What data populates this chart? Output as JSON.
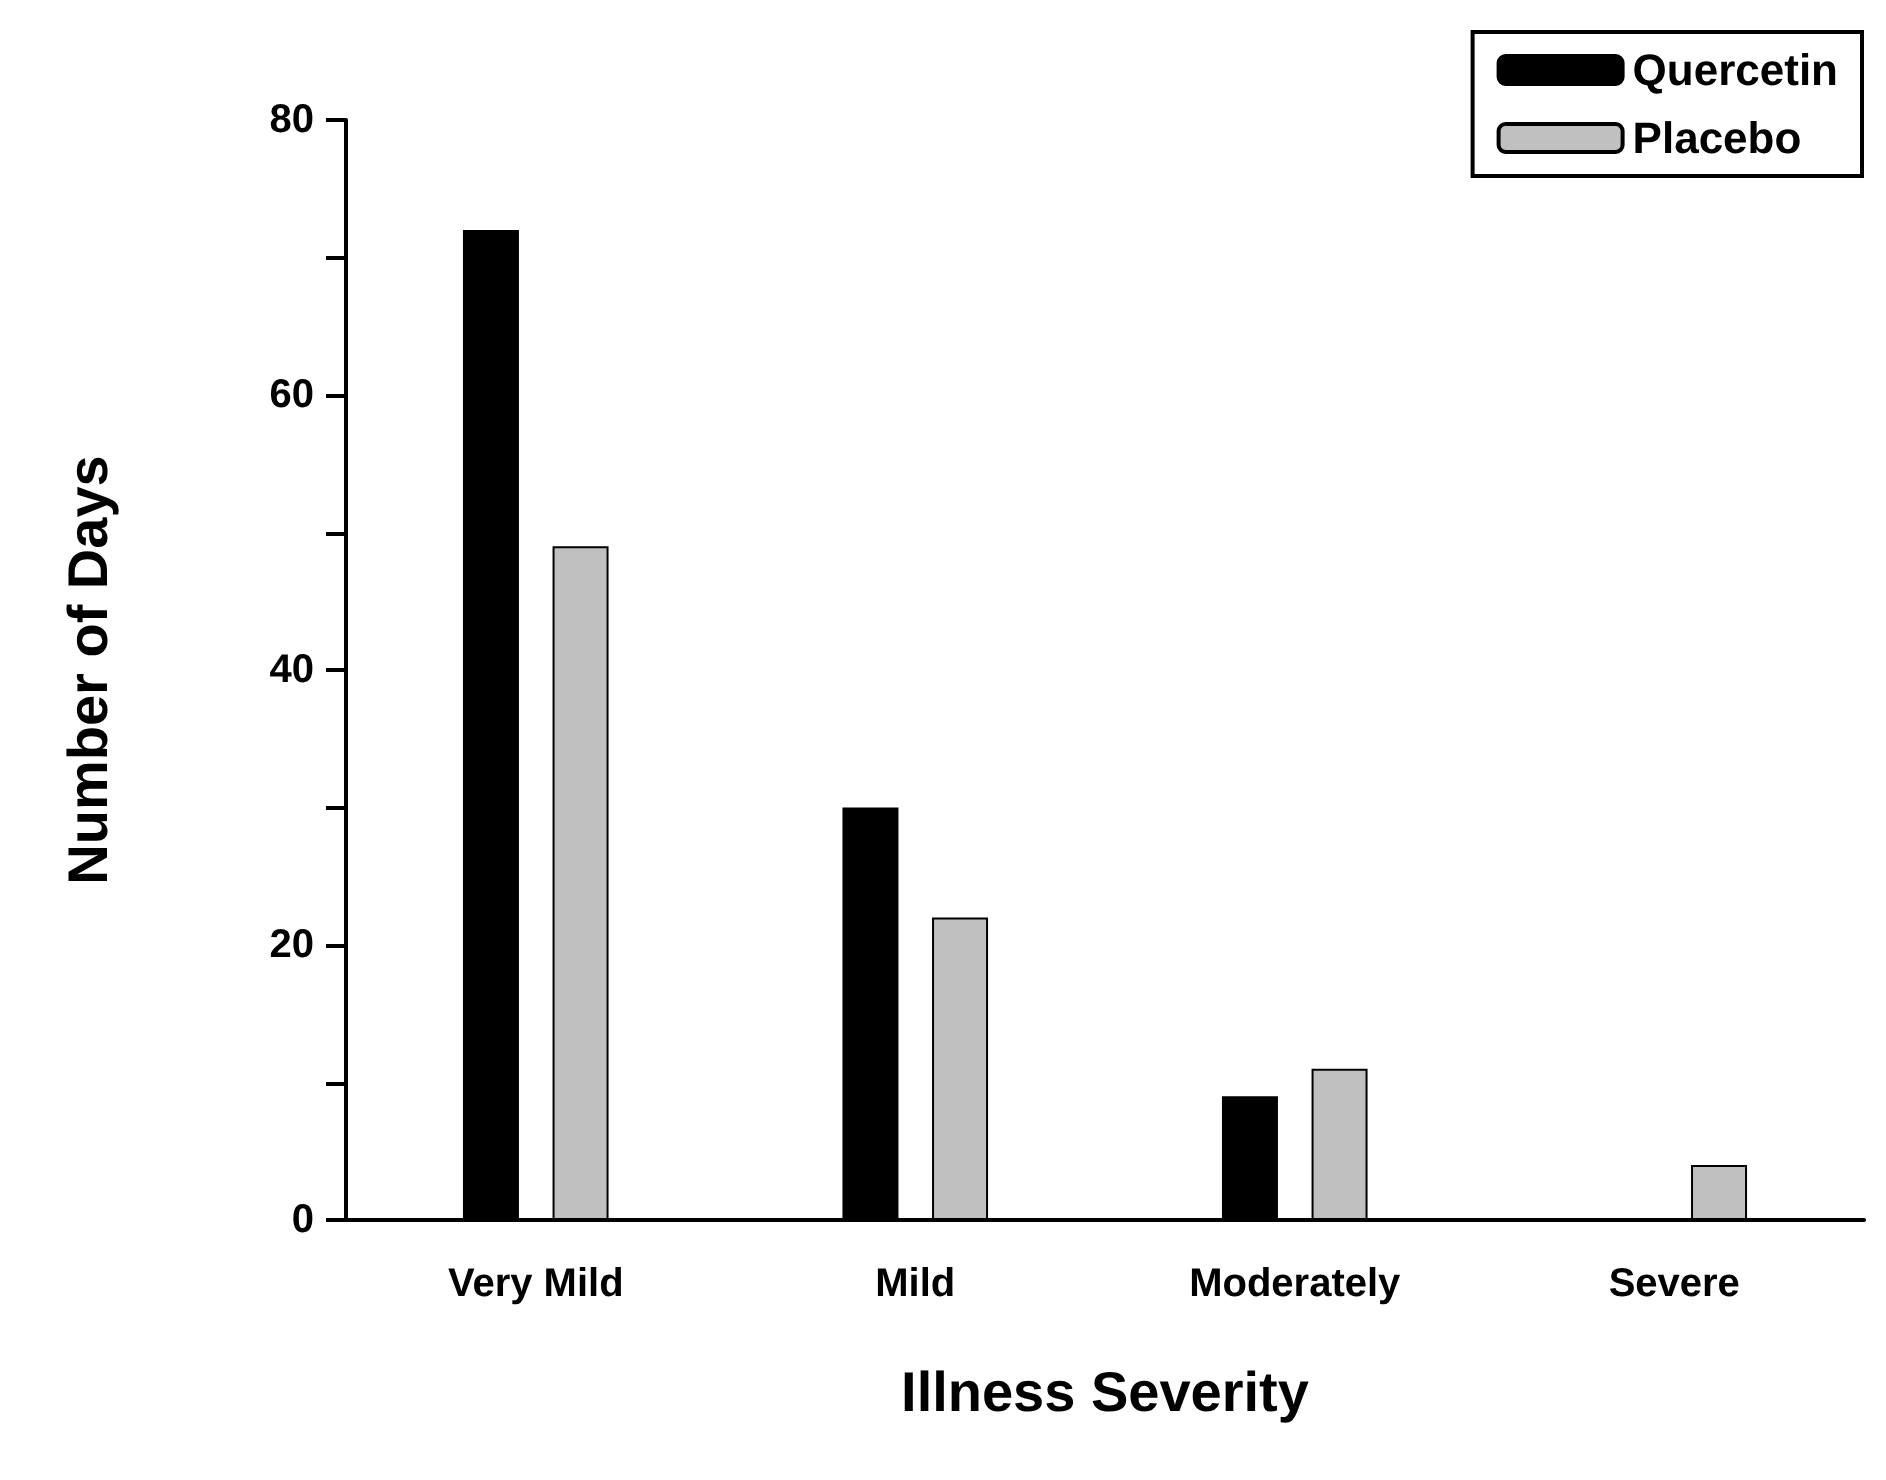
{
  "chart_data": {
    "type": "bar",
    "xlabel": "Illness Severity",
    "ylabel": "Number of Days",
    "categories": [
      "Very Mild",
      "Mild",
      "Moderately",
      "Severe"
    ],
    "series": [
      {
        "name": "Quercetin",
        "color": "#000000",
        "values": [
          72,
          30,
          9,
          0
        ]
      },
      {
        "name": "Placebo",
        "color": "#c0c0c0",
        "values": [
          49,
          22,
          11,
          4
        ]
      }
    ],
    "ylim": [
      0,
      80
    ],
    "yticks": [
      0,
      {
        "value": 10,
        "label": null
      },
      20,
      {
        "value": 30,
        "label": null
      },
      40,
      {
        "value": 50,
        "label": null
      },
      60,
      {
        "value": 70,
        "label": null
      },
      80
    ],
    "grid": false,
    "legend": "top right"
  }
}
